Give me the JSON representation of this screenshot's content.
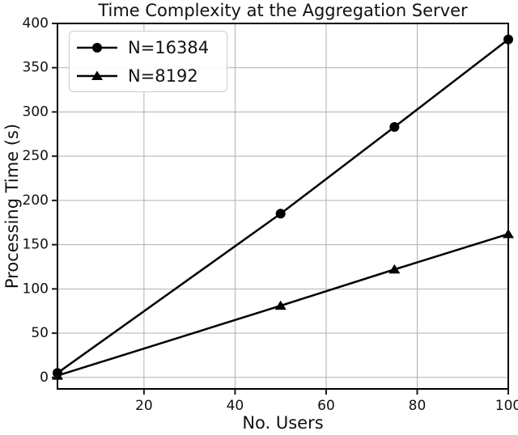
{
  "chart_data": {
    "type": "line",
    "title": "Time Complexity at the Aggregation Server",
    "xlabel": "No. Users",
    "ylabel": "Processing Time (s)",
    "x": [
      1,
      50,
      75,
      100
    ],
    "series": [
      {
        "name": "N=16384",
        "marker": "circle",
        "values": [
          5,
          185,
          283,
          382
        ]
      },
      {
        "name": "N=8192",
        "marker": "triangle",
        "values": [
          2,
          81,
          122,
          162
        ]
      }
    ],
    "x_ticks": [
      20,
      40,
      60,
      80,
      100
    ],
    "y_ticks": [
      0,
      50,
      100,
      150,
      200,
      250,
      300,
      350,
      400
    ],
    "xlim": [
      1,
      100
    ],
    "ylim": [
      -13,
      400
    ],
    "grid": true,
    "legend_position": "upper-left",
    "colors": {
      "line": "#000000",
      "marker": "#000000",
      "grid": "#b0b0b0",
      "spine": "#000000",
      "tick": "#1a1a1a",
      "text": "#111111",
      "legend_border": "#cccccc",
      "background": "#ffffff"
    }
  }
}
